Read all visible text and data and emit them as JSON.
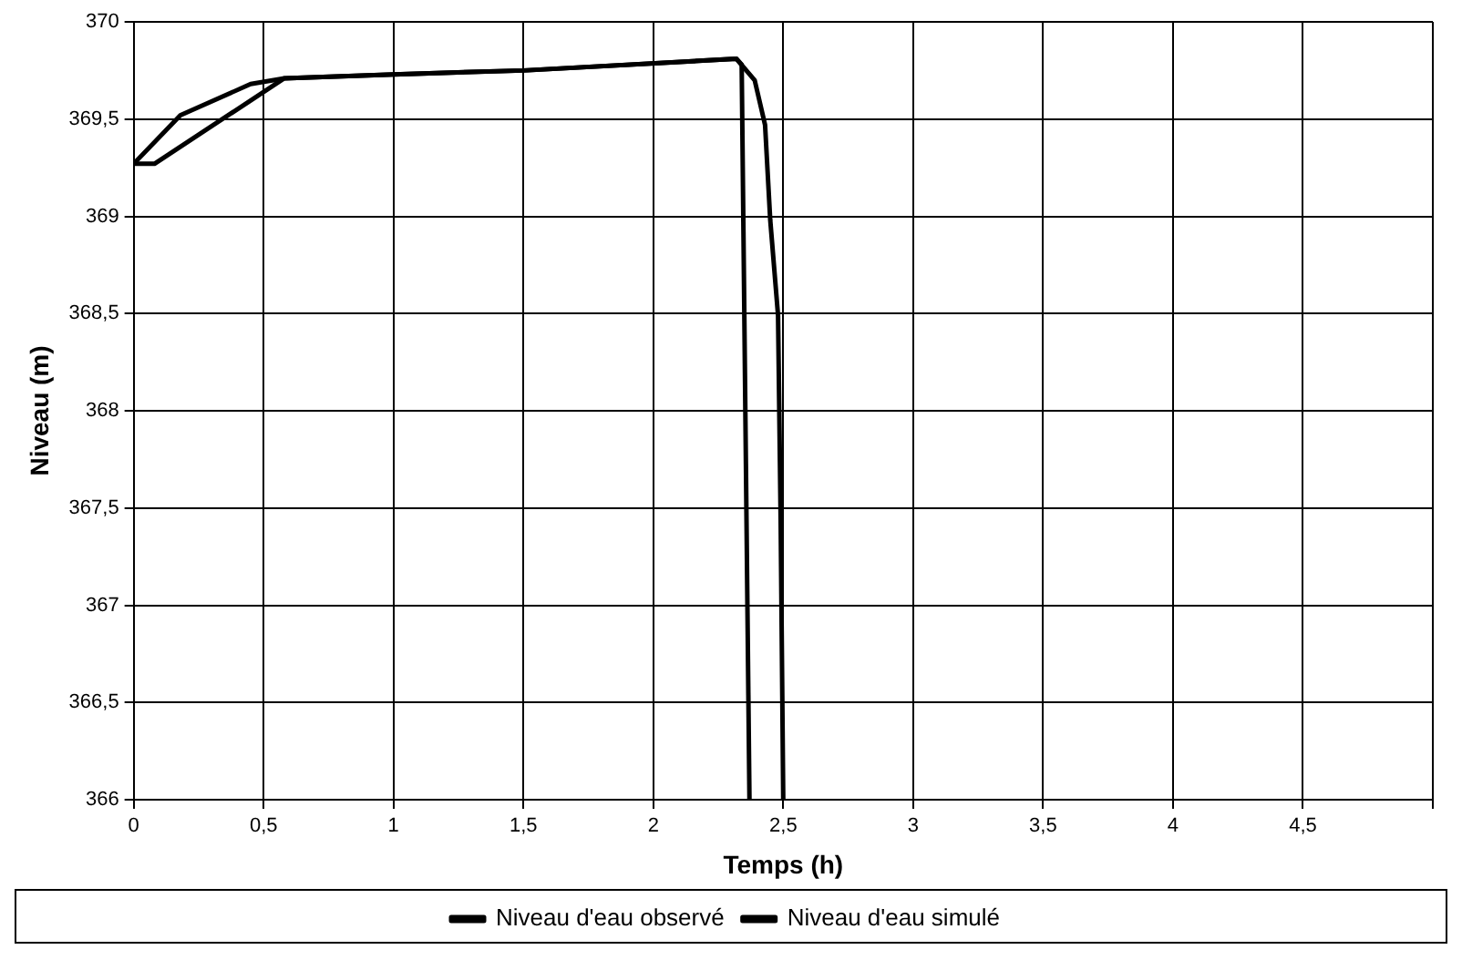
{
  "chart_data": {
    "type": "line",
    "xlabel": "Temps (h)",
    "ylabel": "Niveau (m)",
    "xlim": [
      0,
      5
    ],
    "xticks": [
      0,
      {
        "value": 0.5,
        "label": "0,5"
      },
      1,
      {
        "value": 1.5,
        "label": "1,5"
      },
      2,
      {
        "value": 2.5,
        "label": "2,5"
      },
      3,
      {
        "value": 3.5,
        "label": "3,5"
      },
      4,
      {
        "value": 4.5,
        "label": "4,5"
      },
      {
        "value": 5,
        "label": null
      }
    ],
    "ylim": [
      366,
      370
    ],
    "yticks": [
      366,
      {
        "value": 366.5,
        "label": "366,5"
      },
      367,
      {
        "value": 367.5,
        "label": "367,5"
      },
      368,
      {
        "value": 368.5,
        "label": "368,5"
      },
      369,
      {
        "value": 369.5,
        "label": "369,5"
      },
      370
    ],
    "series": [
      {
        "name": "Niveau d'eau observé",
        "color": "#000000",
        "x": [
          0,
          0.18,
          0.45,
          0.58,
          1,
          1.5,
          2.32,
          2.34,
          2.37
        ],
        "values": [
          369.27,
          369.52,
          369.68,
          369.71,
          369.73,
          369.75,
          369.81,
          369.78,
          366
        ]
      },
      {
        "name": "Niveau d'eau simulé",
        "color": "#000000",
        "x": [
          0,
          0.08,
          0.58,
          1,
          1.5,
          2.32,
          2.39,
          2.43,
          2.45,
          2.48,
          2.49,
          2.5
        ],
        "values": [
          369.27,
          369.27,
          369.71,
          369.73,
          369.75,
          369.81,
          369.7,
          369.47,
          368.98,
          368.49,
          367.44,
          366
        ]
      }
    ],
    "grid": true,
    "legend": "bottom",
    "marker": "none",
    "line_style": "solid"
  }
}
